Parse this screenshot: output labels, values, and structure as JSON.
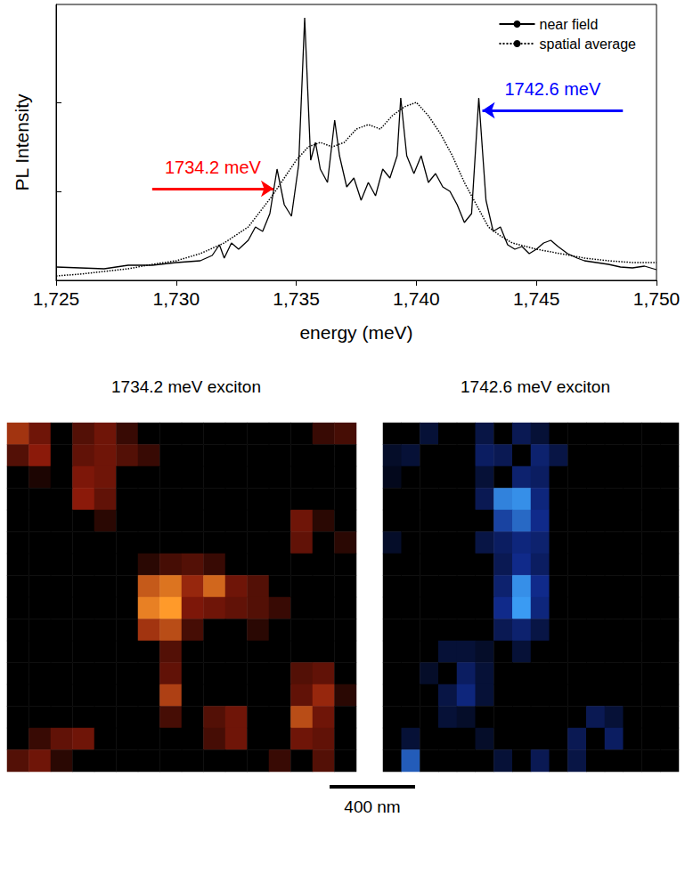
{
  "chart_data": [
    {
      "type": "line",
      "x_label": "energy (meV)",
      "y_label": "PL Intensity",
      "xlim": [
        1725,
        1750
      ],
      "xticks": [
        1725,
        1730,
        1735,
        1740,
        1745,
        1750
      ],
      "ylim": [
        0,
        3.1
      ],
      "yticks": [
        1,
        2
      ],
      "tick_labels": "x",
      "grid": false,
      "legend": "upper right",
      "series": [
        {
          "name": "near field",
          "color": "#000000",
          "line_style": "solid",
          "x": [
            1725,
            1726,
            1727,
            1728,
            1729,
            1730,
            1731,
            1731.5,
            1731.8,
            1732,
            1732.3,
            1732.6,
            1733,
            1733.3,
            1733.6,
            1733.9,
            1734.2,
            1734.5,
            1734.8,
            1735.1,
            1735.35,
            1735.6,
            1735.8,
            1736.0,
            1736.3,
            1736.6,
            1736.8,
            1737.1,
            1737.4,
            1737.7,
            1738.0,
            1738.3,
            1738.6,
            1738.9,
            1739.2,
            1739.35,
            1739.6,
            1739.9,
            1740.2,
            1740.5,
            1740.8,
            1741.1,
            1741.4,
            1741.7,
            1742.0,
            1742.3,
            1742.6,
            1742.9,
            1743.2,
            1743.5,
            1743.8,
            1744.1,
            1744.4,
            1744.7,
            1745.0,
            1745.3,
            1745.6,
            1745.9,
            1746.3,
            1746.7,
            1747,
            1747.5,
            1748,
            1748.5,
            1749,
            1749.5,
            1750
          ],
          "values": [
            0.15,
            0.14,
            0.13,
            0.17,
            0.17,
            0.2,
            0.22,
            0.28,
            0.4,
            0.25,
            0.42,
            0.35,
            0.45,
            0.6,
            0.55,
            0.75,
            1.25,
            0.85,
            0.72,
            1.3,
            2.95,
            1.35,
            1.55,
            1.25,
            1.1,
            1.8,
            1.4,
            1.05,
            1.15,
            0.9,
            1.1,
            0.95,
            1.25,
            1.15,
            1.4,
            2.05,
            1.4,
            1.2,
            1.4,
            1.1,
            1.2,
            1.05,
            1.0,
            0.85,
            0.65,
            0.75,
            2.05,
            0.9,
            0.55,
            0.6,
            0.4,
            0.35,
            0.38,
            0.3,
            0.35,
            0.42,
            0.45,
            0.38,
            0.3,
            0.25,
            0.22,
            0.2,
            0.18,
            0.15,
            0.14,
            0.16,
            0.12
          ]
        },
        {
          "name": "spatial average",
          "color": "#000000",
          "line_style": "dotted",
          "x": [
            1725,
            1726,
            1727,
            1728,
            1729,
            1730,
            1731,
            1732,
            1733,
            1734,
            1735,
            1735.5,
            1736,
            1736.5,
            1737,
            1737.5,
            1738,
            1738.5,
            1739,
            1739.5,
            1740,
            1740.5,
            1741,
            1741.5,
            1742,
            1742.5,
            1743,
            1743.5,
            1744,
            1745,
            1746,
            1747,
            1748,
            1749,
            1750
          ],
          "values": [
            0.05,
            0.07,
            0.1,
            0.13,
            0.18,
            0.22,
            0.3,
            0.42,
            0.6,
            0.95,
            1.35,
            1.5,
            1.55,
            1.5,
            1.55,
            1.7,
            1.75,
            1.7,
            1.85,
            1.95,
            2.0,
            1.85,
            1.65,
            1.4,
            1.1,
            0.85,
            0.6,
            0.5,
            0.42,
            0.35,
            0.3,
            0.25,
            0.22,
            0.2,
            0.2
          ]
        }
      ],
      "annotations": [
        {
          "text": "1734.2 meV",
          "color": "#ff0000",
          "x": 1734.2,
          "y": 1.03,
          "from": 1729.0
        },
        {
          "text": "1742.6 meV",
          "color": "#0000ff",
          "x": 1742.6,
          "y": 1.91,
          "from": 1748.6
        }
      ]
    },
    {
      "type": "heatmap",
      "title": "1734.2 meV exciton",
      "tick_labels": false,
      "color_range": [
        0,
        1
      ],
      "color_scale": [
        "#000000",
        "#8b1a0a",
        "#ff9a2a"
      ],
      "cells": [
        [
          0.6,
          0.4,
          0,
          0.3,
          0.4,
          0.2,
          0,
          0,
          0,
          0,
          0,
          0,
          0,
          0,
          0.2,
          0.25
        ],
        [
          0.3,
          0.5,
          0,
          0.35,
          0.4,
          0.3,
          0.2,
          0,
          0,
          0,
          0,
          0,
          0,
          0,
          0,
          0
        ],
        [
          0,
          0.1,
          0,
          0.45,
          0.4,
          0,
          0,
          0,
          0,
          0,
          0,
          0,
          0,
          0,
          0,
          0
        ],
        [
          0,
          0,
          0,
          0.5,
          0.35,
          0,
          0,
          0,
          0,
          0,
          0,
          0,
          0,
          0,
          0,
          0
        ],
        [
          0,
          0,
          0,
          0,
          0.15,
          0,
          0,
          0,
          0,
          0,
          0,
          0,
          0,
          0.4,
          0.15,
          0
        ],
        [
          0,
          0,
          0,
          0,
          0,
          0,
          0,
          0,
          0,
          0,
          0,
          0,
          0,
          0.35,
          0,
          0.15
        ],
        [
          0,
          0,
          0,
          0,
          0,
          0,
          0.15,
          0.25,
          0.3,
          0.2,
          0,
          0,
          0,
          0,
          0,
          0
        ],
        [
          0,
          0,
          0,
          0,
          0,
          0,
          0.75,
          0.85,
          0.55,
          0.8,
          0.4,
          0.3,
          0,
          0,
          0,
          0
        ],
        [
          0,
          0,
          0,
          0,
          0,
          0,
          0.9,
          1,
          0.45,
          0.4,
          0.35,
          0.3,
          0.2,
          0,
          0,
          0
        ],
        [
          0,
          0,
          0,
          0,
          0,
          0,
          0.6,
          0.7,
          0.25,
          0,
          0,
          0.15,
          0,
          0,
          0,
          0
        ],
        [
          0,
          0,
          0,
          0,
          0,
          0,
          0,
          0.3,
          0,
          0,
          0,
          0,
          0,
          0,
          0,
          0
        ],
        [
          0,
          0,
          0,
          0,
          0,
          0,
          0,
          0.35,
          0,
          0,
          0,
          0,
          0,
          0.3,
          0.35,
          0
        ],
        [
          0,
          0,
          0,
          0,
          0,
          0,
          0,
          0.65,
          0,
          0,
          0,
          0,
          0,
          0.35,
          0.55,
          0.15
        ],
        [
          0,
          0,
          0,
          0,
          0,
          0,
          0,
          0.25,
          0,
          0.3,
          0.4,
          0,
          0,
          0.7,
          0.4,
          0
        ],
        [
          0,
          0.2,
          0.35,
          0.4,
          0,
          0,
          0,
          0,
          0,
          0.25,
          0.4,
          0,
          0,
          0.4,
          0.35,
          0
        ],
        [
          0.3,
          0.4,
          0.15,
          0,
          0,
          0,
          0,
          0,
          0,
          0,
          0,
          0,
          0.2,
          0,
          0.3,
          0
        ]
      ]
    },
    {
      "type": "heatmap",
      "title": "1742.6 meV exciton",
      "tick_labels": false,
      "color_range": [
        0,
        1
      ],
      "color_scale": [
        "#000000",
        "#102a8a",
        "#3fa8ff"
      ],
      "cells": [
        [
          0,
          0,
          0.2,
          0,
          0,
          0.25,
          0,
          0.3,
          0.2,
          0,
          0,
          0,
          0,
          0,
          0,
          0
        ],
        [
          0.15,
          0.2,
          0,
          0,
          0,
          0.35,
          0.3,
          0,
          0.4,
          0.25,
          0,
          0,
          0,
          0,
          0,
          0
        ],
        [
          0.1,
          0,
          0,
          0,
          0,
          0.2,
          0,
          0.4,
          0.35,
          0,
          0,
          0,
          0,
          0,
          0,
          0
        ],
        [
          0,
          0,
          0,
          0,
          0,
          0.3,
          0.85,
          0.9,
          0.45,
          0,
          0,
          0,
          0,
          0,
          0,
          0
        ],
        [
          0,
          0,
          0,
          0,
          0,
          0,
          0.6,
          0.75,
          0.5,
          0,
          0,
          0,
          0,
          0,
          0,
          0
        ],
        [
          0.15,
          0,
          0,
          0,
          0,
          0.25,
          0.35,
          0.45,
          0.4,
          0,
          0,
          0,
          0,
          0,
          0,
          0
        ],
        [
          0,
          0,
          0,
          0,
          0,
          0,
          0.3,
          0.5,
          0.35,
          0,
          0,
          0,
          0,
          0,
          0,
          0
        ],
        [
          0,
          0,
          0,
          0,
          0,
          0,
          0.4,
          0.9,
          0.5,
          0,
          0,
          0,
          0,
          0,
          0,
          0
        ],
        [
          0,
          0,
          0,
          0,
          0,
          0,
          0.5,
          0.95,
          0.45,
          0,
          0,
          0,
          0,
          0,
          0,
          0
        ],
        [
          0,
          0,
          0,
          0,
          0,
          0,
          0.3,
          0.4,
          0.25,
          0,
          0,
          0,
          0,
          0,
          0,
          0
        ],
        [
          0,
          0,
          0,
          0.2,
          0.2,
          0.15,
          0,
          0.2,
          0,
          0,
          0,
          0,
          0,
          0,
          0,
          0
        ],
        [
          0,
          0,
          0.15,
          0,
          0.35,
          0.2,
          0,
          0,
          0,
          0,
          0,
          0,
          0,
          0,
          0,
          0
        ],
        [
          0,
          0,
          0,
          0.25,
          0.45,
          0.2,
          0,
          0,
          0,
          0,
          0,
          0,
          0,
          0,
          0,
          0
        ],
        [
          0,
          0,
          0,
          0.2,
          0.15,
          0,
          0,
          0,
          0,
          0,
          0,
          0.3,
          0.2,
          0,
          0,
          0
        ],
        [
          0,
          0.2,
          0,
          0,
          0,
          0.15,
          0,
          0,
          0,
          0,
          0.3,
          0,
          0.35,
          0,
          0,
          0
        ],
        [
          0,
          0.7,
          0,
          0,
          0,
          0,
          0.2,
          0,
          0.3,
          0,
          0.25,
          0,
          0,
          0,
          0,
          0
        ]
      ]
    }
  ],
  "scale_bar": {
    "label": "400 nm"
  }
}
